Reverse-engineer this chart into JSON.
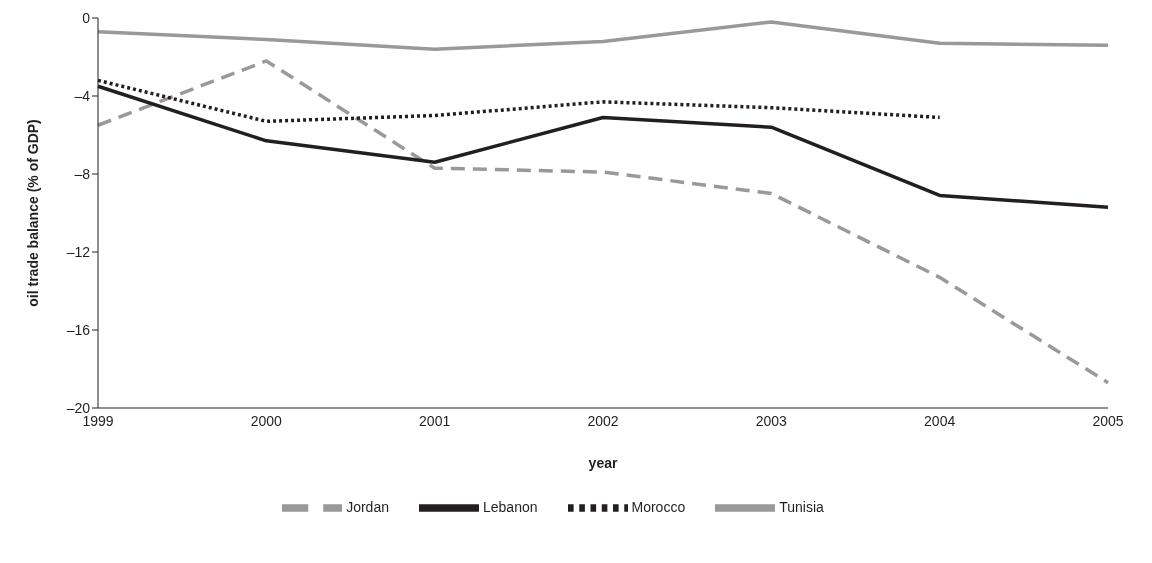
{
  "chart_data": {
    "type": "line",
    "xlabel": "year",
    "ylabel": "oil trade balance (% of GDP)",
    "categories": [
      "1999",
      "2000",
      "2001",
      "2002",
      "2003",
      "2004",
      "2005"
    ],
    "series": [
      {
        "name": "Jordan",
        "color": "#999999",
        "line_style": "dashed",
        "values": [
          -5.5,
          -2.2,
          -7.7,
          -7.9,
          -9.0,
          -13.3,
          -18.7
        ]
      },
      {
        "name": "Lebanon",
        "color": "#231f20",
        "line_style": "solid",
        "values": [
          -3.5,
          -6.3,
          -7.4,
          -5.1,
          -5.6,
          -9.1,
          -9.7
        ]
      },
      {
        "name": "Morocco",
        "color": "#231f20",
        "line_style": "dotted",
        "values": [
          -3.2,
          -5.3,
          -5.0,
          -4.3,
          -4.6,
          -5.1,
          null
        ]
      },
      {
        "name": "Tunisia",
        "color": "#999999",
        "line_style": "solid",
        "values": [
          -0.7,
          -1.1,
          -1.6,
          -1.2,
          -0.2,
          -1.3,
          -1.4
        ]
      }
    ],
    "ylim": [
      -20,
      0
    ],
    "yticks": [
      {
        "value": -20,
        "label": "–20"
      },
      {
        "value": -16,
        "label": "–16"
      },
      {
        "value": -12,
        "label": "–12"
      },
      {
        "value": -8,
        "label": "–8"
      },
      {
        "value": -4,
        "label": "–4"
      },
      0
    ],
    "grid": false,
    "legend": "bottom",
    "marker": "none"
  }
}
